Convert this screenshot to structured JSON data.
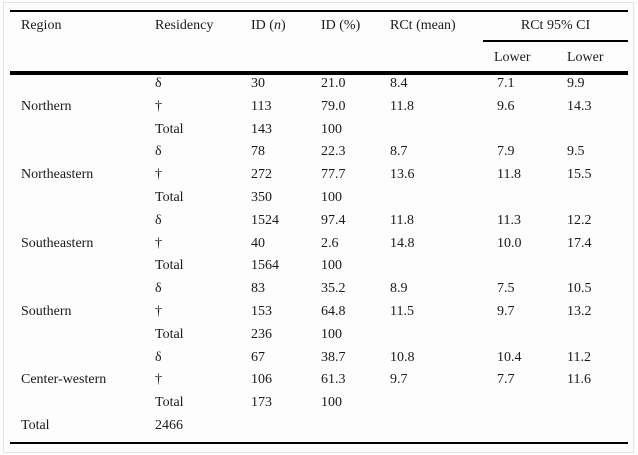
{
  "table": {
    "headers": {
      "region": "Region",
      "residency": "Residency",
      "id_n": {
        "pre": "ID (",
        "it": "n",
        "post": ")"
      },
      "id_pct": "ID (%)",
      "rct_mean": "RCt (mean)",
      "ci_group": "RCt 95% CI",
      "ci_sub1": "Lower",
      "ci_sub2": "Lower"
    },
    "rows": [
      {
        "region": "",
        "res": "δ",
        "n": "30",
        "pct": "21.0",
        "mean": "8.4",
        "lo": "7.1",
        "hi": "9.9"
      },
      {
        "region": "Northern",
        "res": "†",
        "n": "113",
        "pct": "79.0",
        "mean": "11.8",
        "lo": "9.6",
        "hi": "14.3"
      },
      {
        "region": "",
        "res": "Total",
        "n": "143",
        "pct": "100",
        "mean": "",
        "lo": "",
        "hi": ""
      },
      {
        "region": "",
        "res": "δ",
        "n": "78",
        "pct": "22.3",
        "mean": "8.7",
        "lo": "7.9",
        "hi": "9.5"
      },
      {
        "region": "Northeastern",
        "res": "†",
        "n": "272",
        "pct": "77.7",
        "mean": "13.6",
        "lo": "11.8",
        "hi": "15.5"
      },
      {
        "region": "",
        "res": "Total",
        "n": "350",
        "pct": "100",
        "mean": "",
        "lo": "",
        "hi": ""
      },
      {
        "region": "",
        "res": "δ",
        "n": "1524",
        "pct": "97.4",
        "mean": "11.8",
        "lo": "11.3",
        "hi": "12.2"
      },
      {
        "region": "Southeastern",
        "res": "†",
        "n": "40",
        "pct": "2.6",
        "mean": "14.8",
        "lo": "10.0",
        "hi": "17.4"
      },
      {
        "region": "",
        "res": "Total",
        "n": "1564",
        "pct": "100",
        "mean": "",
        "lo": "",
        "hi": ""
      },
      {
        "region": "",
        "res": "δ",
        "n": "83",
        "pct": "35.2",
        "mean": "8.9",
        "lo": "7.5",
        "hi": "10.5"
      },
      {
        "region": "Southern",
        "res": "†",
        "n": "153",
        "pct": "64.8",
        "mean": "11.5",
        "lo": "9.7",
        "hi": "13.2"
      },
      {
        "region": "",
        "res": "Total",
        "n": "236",
        "pct": "100",
        "mean": "",
        "lo": "",
        "hi": ""
      },
      {
        "region": "",
        "res": "δ",
        "n": "67",
        "pct": "38.7",
        "mean": "10.8",
        "lo": "10.4",
        "hi": "11.2"
      },
      {
        "region": "Center-western",
        "res": "†",
        "n": "106",
        "pct": "61.3",
        "mean": "9.7",
        "lo": "7.7",
        "hi": "11.6"
      },
      {
        "region": "",
        "res": "Total",
        "n": "173",
        "pct": "100",
        "mean": "",
        "lo": "",
        "hi": ""
      },
      {
        "region": "Total",
        "res": "2466",
        "n": "",
        "pct": "",
        "mean": "",
        "lo": "",
        "hi": ""
      }
    ]
  }
}
